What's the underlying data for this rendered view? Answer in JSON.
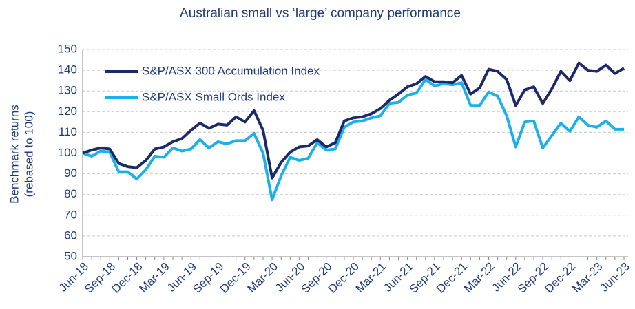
{
  "chart_data": {
    "type": "line",
    "title": "Australian small vs ‘large’ company performance",
    "y_label": [
      "Benchmark returns",
      "(rebased to 100)"
    ],
    "categories": [
      "Jun-18",
      null,
      null,
      "Sep-18",
      null,
      null,
      "Dec-18",
      null,
      null,
      "Mar-19",
      null,
      null,
      "Jun-19",
      null,
      null,
      "Sep-19",
      null,
      null,
      "Dec-19",
      null,
      null,
      "Mar-20",
      null,
      null,
      "Jun-20",
      null,
      null,
      "Sep-20",
      null,
      null,
      "Dec-20",
      null,
      null,
      "Mar-21",
      null,
      null,
      "Jun-21",
      null,
      null,
      "Sep-21",
      null,
      null,
      "Dec-21",
      null,
      null,
      "Mar-22",
      null,
      null,
      "Jun-22",
      null,
      null,
      "Sep-22",
      null,
      null,
      "Dec-22",
      null,
      null,
      "Mar-23",
      null,
      null,
      "Jun-23"
    ],
    "series": [
      {
        "name": "S&P/ASX 300 Accumulation Index",
        "color": "#1b2a6b",
        "values": [
          100,
          101.5,
          102.5,
          102,
          95,
          93.5,
          93,
          96.5,
          102,
          103,
          105.5,
          107,
          111,
          114.5,
          112,
          114,
          113.5,
          117.5,
          115,
          120.5,
          111,
          88,
          95.5,
          100.5,
          103,
          103.5,
          106.5,
          103,
          105,
          115.5,
          117,
          117.5,
          119,
          121.5,
          125.5,
          128.5,
          132,
          133.5,
          137,
          134.5,
          134.5,
          134,
          137.5,
          128.5,
          131.5,
          140.5,
          139.5,
          135.5,
          123,
          130.5,
          132,
          124,
          131,
          139.5,
          135,
          143.5,
          140,
          139.5,
          142.5,
          138.5,
          141
        ]
      },
      {
        "name": "S&P/ASX Small Ords Index",
        "color": "#1cb0ea",
        "values": [
          100,
          98.5,
          101,
          100.5,
          91,
          91,
          87.5,
          92,
          98.5,
          98,
          102.5,
          101,
          102,
          106.5,
          102.5,
          105.5,
          104.5,
          106,
          106,
          109.5,
          100,
          77.5,
          89,
          98,
          96.5,
          97.5,
          105,
          101.5,
          102,
          112.5,
          115,
          115.5,
          117,
          118,
          124,
          124.5,
          128,
          129,
          135.5,
          132.5,
          133.5,
          133,
          134,
          123,
          123,
          129.5,
          127.5,
          118,
          103,
          115,
          115.5,
          102.5,
          108.5,
          114.5,
          110.5,
          117.5,
          113.5,
          112.5,
          115.5,
          111.5,
          111.5
        ]
      }
    ],
    "ylim": [
      50,
      150
    ],
    "yticks": [
      50,
      60,
      70,
      80,
      90,
      100,
      110,
      120,
      130,
      140,
      150
    ],
    "grid": true,
    "legend": "upper left"
  }
}
